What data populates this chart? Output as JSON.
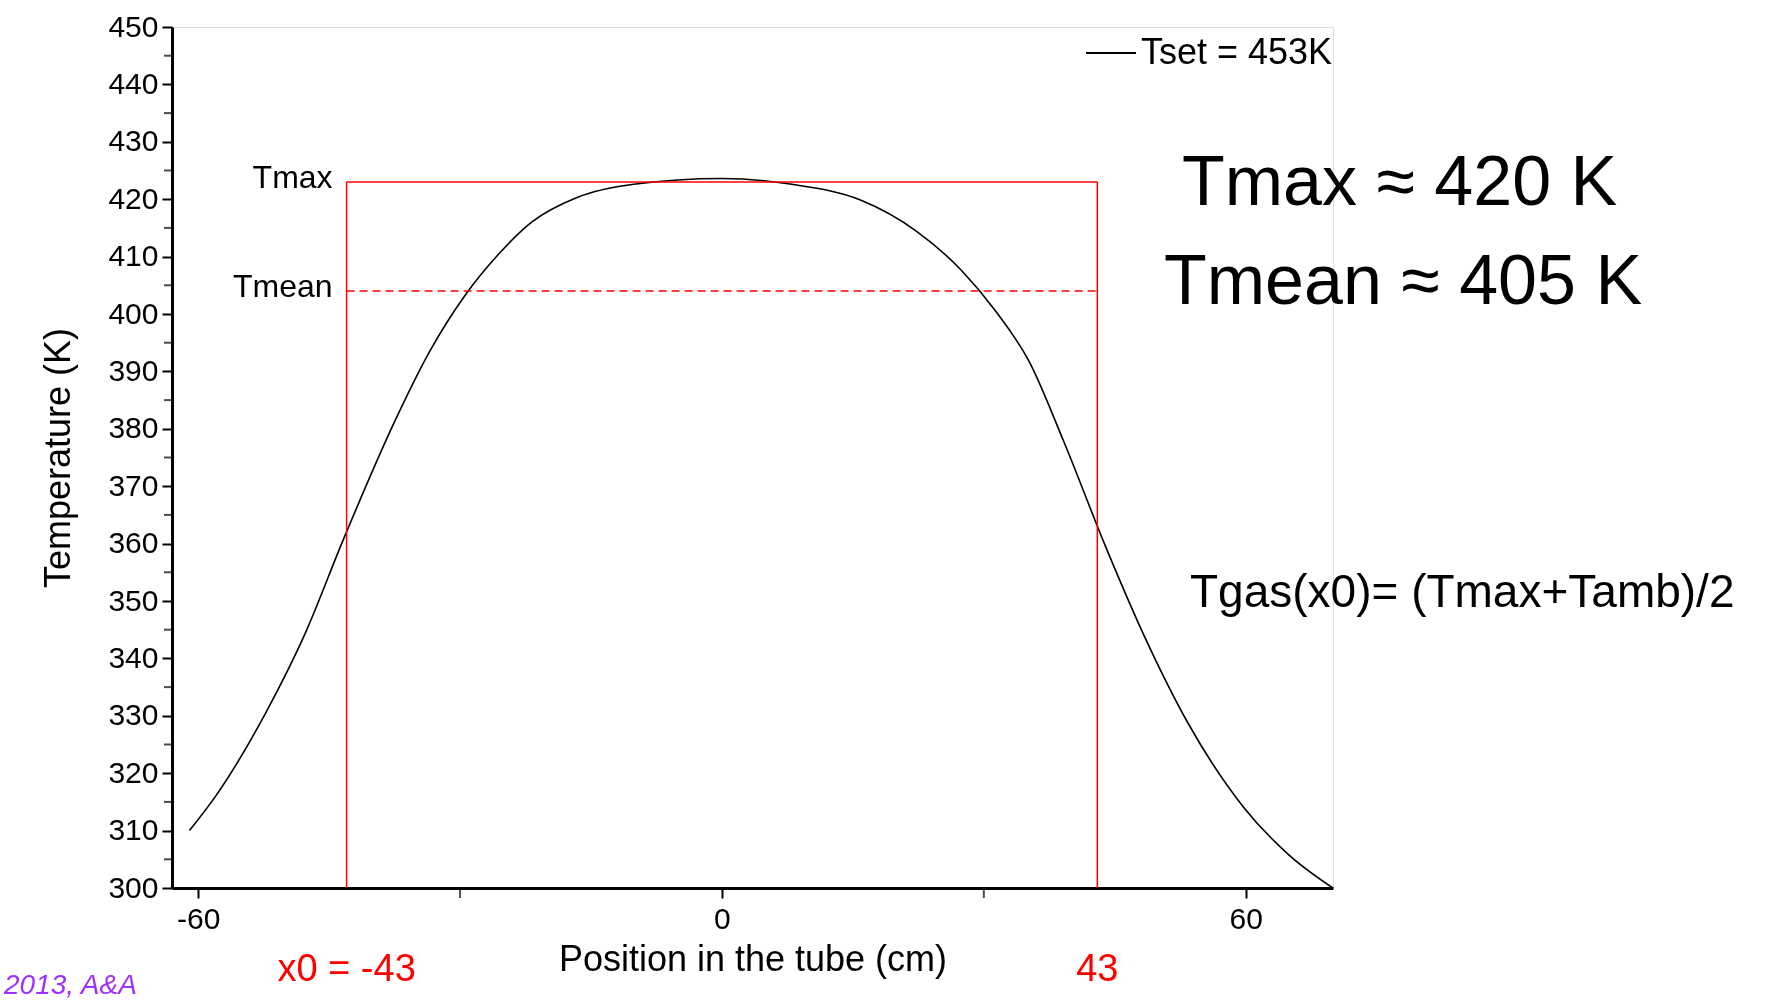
{
  "chart_data": {
    "type": "line",
    "xlabel": "Position in the tube (cm)",
    "ylabel": "Temperature (K)",
    "x": [
      -61,
      -58,
      -52.2,
      -47.7,
      -43.4,
      -37.3,
      -33.4,
      -29.5,
      -25.6,
      -21.8,
      -16.6,
      -10.1,
      0,
      8,
      15.8,
      22.3,
      27.5,
      31.3,
      35.2,
      39.1,
      44,
      48.2,
      53.4,
      59.8,
      65,
      70
    ],
    "series": [
      {
        "name": "Tset = 453K",
        "color": "#000000",
        "values": [
          310,
          316,
          330.7,
          344.5,
          360.6,
          381.9,
          393.7,
          403.1,
          410.4,
          416,
          420.3,
          422.6,
          423.6,
          422.6,
          419.9,
          414.4,
          407.5,
          400.6,
          391.7,
          378,
          359.3,
          344.5,
          328.7,
          314,
          305.7,
          300
        ]
      }
    ],
    "xlim": [
      -63,
      70
    ],
    "xticks": [
      -60,
      {
        "value": -30,
        "label": null
      },
      0,
      {
        "value": 30,
        "label": null
      },
      60
    ],
    "ylim": [
      300,
      450
    ],
    "yticks": [
      300,
      {
        "value": 305,
        "label": null
      },
      310,
      {
        "value": 315,
        "label": null
      },
      320,
      {
        "value": 325,
        "label": null
      },
      330,
      {
        "value": 335,
        "label": null
      },
      340,
      {
        "value": 345,
        "label": null
      },
      350,
      {
        "value": 355,
        "label": null
      },
      360,
      {
        "value": 365,
        "label": null
      },
      370,
      {
        "value": 375,
        "label": null
      },
      380,
      {
        "value": 385,
        "label": null
      },
      390,
      {
        "value": 395,
        "label": null
      },
      400,
      {
        "value": 405,
        "label": null
      },
      410,
      {
        "value": 415,
        "label": null
      },
      420,
      {
        "value": 425,
        "label": null
      },
      430,
      {
        "value": 435,
        "label": null
      },
      440,
      {
        "value": 445,
        "label": null
      },
      450
    ],
    "ref_lines": [
      {
        "axis": "y",
        "value": 423,
        "label": "Tmax",
        "color": "#ff0000",
        "line_style": "solid"
      },
      {
        "axis": "y",
        "value": 404,
        "label": "Tmean",
        "color": "#ff0000",
        "line_style": "dashed"
      },
      {
        "axis": "x",
        "value": -43,
        "label": "x0 = -43",
        "color": "#ff0000",
        "line_style": "solid"
      },
      {
        "axis": "x",
        "value": 43,
        "label": "43",
        "color": "#ff0000",
        "line_style": "solid"
      }
    ],
    "annotations": [
      "Tmax ≈ 420 K",
      "Tmean ≈ 405 K",
      "Tgas(x0)= (Tmax+Tamb)/2",
      "2013, A&A"
    ],
    "legend": "top right",
    "grid": false,
    "marker": "none",
    "line_style": "solid"
  }
}
